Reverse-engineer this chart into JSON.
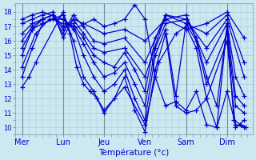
{
  "title": "Température (°c)",
  "bg_color": "#cce8f0",
  "line_color": "#0000cc",
  "marker": "+",
  "markersize": 4,
  "linewidth": 0.9,
  "ylim": [
    9.5,
    18.6
  ],
  "yticks": [
    10,
    11,
    12,
    13,
    14,
    15,
    16,
    17,
    18
  ],
  "day_labels": [
    "Mer",
    "Lun",
    "Jeu",
    "Ven",
    "Sam",
    "Dim"
  ],
  "day_x": [
    0,
    24,
    48,
    72,
    96,
    120
  ],
  "xlim": [
    -4,
    135
  ],
  "grid_color": "#aac8d8",
  "traces": [
    {
      "x": [
        0,
        4,
        8,
        24,
        30,
        36,
        42,
        48,
        54,
        60,
        66,
        72,
        78,
        84,
        90,
        96,
        102,
        108,
        114,
        120,
        125,
        130
      ],
      "y": [
        12.8,
        13.5,
        14.5,
        18.0,
        16.0,
        13.5,
        12.5,
        11.0,
        12.0,
        13.5,
        11.2,
        9.7,
        14.0,
        16.5,
        11.5,
        11.0,
        11.2,
        12.0,
        10.0,
        12.5,
        10.2,
        10.0
      ]
    },
    {
      "x": [
        0,
        6,
        12,
        24,
        28,
        32,
        36,
        40,
        44,
        48,
        60,
        72,
        80,
        90,
        96,
        102,
        108,
        120,
        125,
        130
      ],
      "y": [
        13.5,
        15.5,
        17.2,
        17.8,
        16.5,
        14.2,
        13.0,
        12.5,
        12.0,
        11.2,
        12.8,
        10.2,
        14.5,
        16.5,
        17.0,
        15.5,
        12.0,
        16.0,
        10.0,
        10.5
      ]
    },
    {
      "x": [
        0,
        8,
        16,
        24,
        30,
        36,
        42,
        48,
        54,
        60,
        66,
        72,
        78,
        84,
        90,
        96,
        102,
        108,
        120,
        125,
        130
      ],
      "y": [
        14.2,
        16.5,
        17.5,
        17.5,
        17.0,
        15.0,
        13.5,
        12.5,
        13.0,
        14.0,
        12.0,
        10.5,
        15.0,
        16.8,
        12.2,
        17.2,
        16.0,
        13.0,
        16.5,
        11.5,
        11.0
      ]
    },
    {
      "x": [
        0,
        6,
        12,
        18,
        24,
        30,
        36,
        42,
        48,
        54,
        60,
        66,
        72,
        78,
        84,
        96,
        102,
        108,
        114,
        120,
        125,
        130
      ],
      "y": [
        15.0,
        16.8,
        17.2,
        17.5,
        17.2,
        17.0,
        15.8,
        14.5,
        13.5,
        13.8,
        14.5,
        13.0,
        11.5,
        15.5,
        17.2,
        17.5,
        16.2,
        13.5,
        11.5,
        17.0,
        12.2,
        11.5
      ]
    },
    {
      "x": [
        0,
        6,
        12,
        18,
        24,
        30,
        36,
        42,
        48,
        54,
        60,
        66,
        72,
        78,
        84,
        96,
        108,
        120,
        125,
        130
      ],
      "y": [
        15.5,
        16.8,
        17.5,
        17.8,
        17.0,
        17.2,
        16.2,
        15.0,
        14.5,
        14.2,
        15.2,
        14.0,
        12.5,
        16.2,
        17.5,
        17.8,
        14.5,
        17.2,
        13.5,
        12.2
      ]
    },
    {
      "x": [
        0,
        6,
        12,
        18,
        24,
        30,
        36,
        42,
        48,
        60,
        72,
        84,
        96,
        108,
        120,
        130
      ],
      "y": [
        16.0,
        17.0,
        17.5,
        17.8,
        16.8,
        17.5,
        16.5,
        15.5,
        15.2,
        15.5,
        13.5,
        17.8,
        17.5,
        15.5,
        17.5,
        13.5
      ]
    },
    {
      "x": [
        0,
        6,
        12,
        18,
        24,
        30,
        36,
        42,
        48,
        60,
        72,
        84,
        96,
        108,
        120,
        130
      ],
      "y": [
        16.5,
        17.2,
        17.5,
        17.8,
        16.5,
        17.8,
        17.0,
        16.0,
        15.8,
        16.2,
        14.5,
        17.8,
        17.2,
        16.5,
        17.8,
        14.5
      ]
    },
    {
      "x": [
        0,
        6,
        12,
        18,
        24,
        30,
        36,
        48,
        60,
        72,
        84,
        96,
        108,
        120,
        130
      ],
      "y": [
        17.2,
        17.5,
        17.8,
        18.0,
        16.2,
        17.5,
        17.2,
        16.5,
        16.8,
        16.0,
        17.5,
        16.8,
        17.2,
        18.0,
        16.2
      ]
    },
    {
      "x": [
        0,
        6,
        12,
        24,
        30,
        42,
        48,
        54,
        60,
        66,
        72,
        78,
        84,
        90,
        96,
        102,
        108,
        114,
        120,
        124,
        128,
        131
      ],
      "y": [
        17.5,
        17.8,
        18.0,
        17.5,
        16.8,
        17.5,
        17.0,
        17.2,
        17.5,
        18.5,
        17.5,
        13.5,
        11.5,
        11.8,
        11.2,
        12.5,
        10.2,
        10.0,
        17.0,
        10.5,
        10.2,
        10.0
      ]
    }
  ]
}
